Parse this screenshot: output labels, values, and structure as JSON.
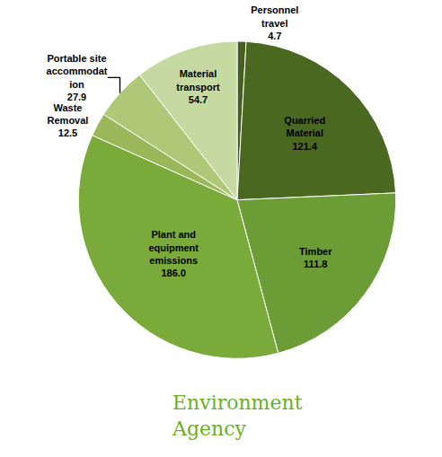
{
  "chart_data": {
    "type": "pie",
    "categories": [
      "Personnel\ntravel\n4.7",
      "Quarried\nMaterial\n121.4",
      "Timber\n111.8",
      "Plant and\nequipment\nemissions\n186.0",
      "Waste\nRemoval\n12.5",
      "Portable site\naccommodat\nion\n27.9",
      "Material\ntransport\n54.7"
    ],
    "values": [
      4.7,
      121.4,
      111.8,
      186.0,
      12.5,
      27.9,
      54.7
    ],
    "colors": [
      "#445f1e",
      "#4a6820",
      "#6b9c35",
      "#7aab3a",
      "#9ab85a",
      "#aec878",
      "#c5d9a0"
    ],
    "legend": false,
    "annotations": [
      {
        "text": "Environment\nAgency",
        "color": "#6ab023"
      }
    ]
  }
}
